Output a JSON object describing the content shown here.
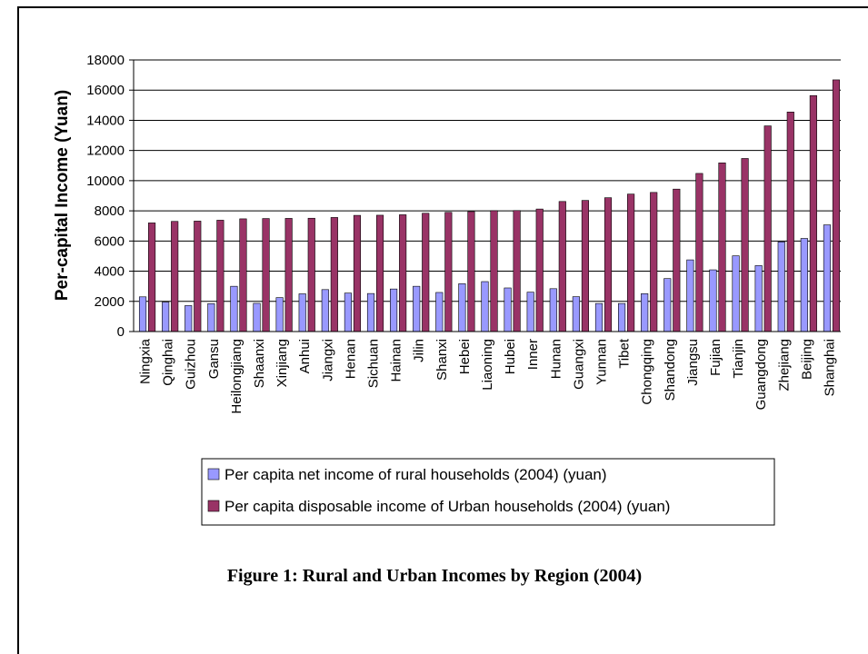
{
  "chart_data": {
    "type": "bar",
    "caption": "Figure 1: Rural and Urban Incomes by Region (2004)",
    "y_label": "Per-capital Income (Yuan)",
    "categories": [
      "Ningxia",
      "Qinghai",
      "Guizhou",
      "Gansu",
      "Heilongjiang",
      "Shaanxi",
      "Xinjiang",
      "Anhui",
      "Jiangxi",
      "Henan",
      "Sichuan",
      "Hainan",
      "Jilin",
      "Shanxi",
      "Hebei",
      "Liaoning",
      "Hubei",
      "Inner",
      "Hunan",
      "Guangxi",
      "Yunnan",
      "Tibet",
      "Chongqing",
      "Shandong",
      "Jiangsu",
      "Fujian",
      "Tianjin",
      "Guangdong",
      "Zhejiang",
      "Beijing",
      "Shanghai"
    ],
    "series": [
      {
        "name": "Per capita net income of rural households (2004) (yuan)",
        "color": "#9999ff",
        "values": [
          2300,
          1950,
          1720,
          1850,
          3000,
          1870,
          2250,
          2500,
          2780,
          2550,
          2520,
          2820,
          3000,
          2590,
          3170,
          3310,
          2890,
          2610,
          2840,
          2310,
          1860,
          1860,
          2510,
          3510,
          4750,
          4090,
          5020,
          4370,
          5940,
          6170,
          7070
        ]
      },
      {
        "name": "Per capita disposable income of Urban households (2004) (yuan)",
        "color": "#993366",
        "values": [
          7200,
          7300,
          7320,
          7380,
          7470,
          7490,
          7500,
          7510,
          7560,
          7700,
          7710,
          7740,
          7840,
          7900,
          7950,
          8010,
          8020,
          8120,
          8620,
          8690,
          8870,
          9110,
          9220,
          9440,
          10480,
          11180,
          11470,
          13630,
          14550,
          15640,
          16680
        ]
      }
    ],
    "ylim": [
      0,
      18000
    ],
    "yticks": [
      0,
      2000,
      4000,
      6000,
      8000,
      10000,
      12000,
      14000,
      16000,
      18000
    ],
    "grid": true
  }
}
